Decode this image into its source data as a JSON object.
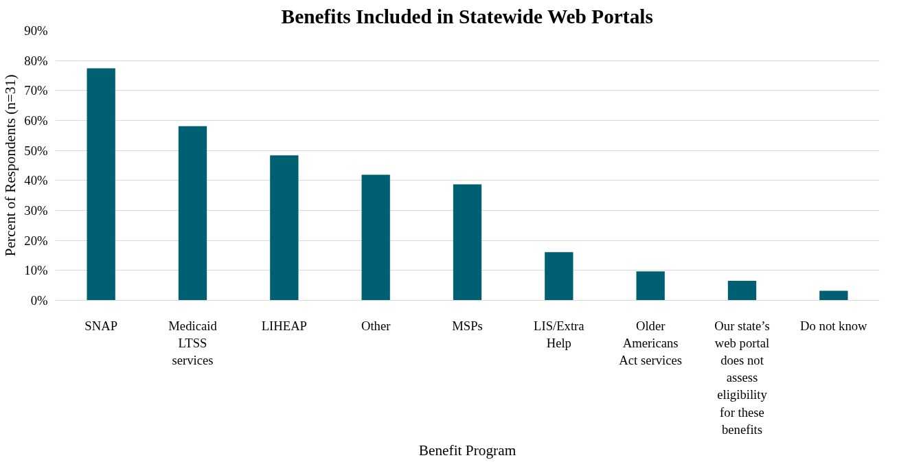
{
  "chart_data": {
    "type": "bar",
    "title": "Benefits Included in Statewide Web Portals",
    "xlabel": "Benefit Program",
    "ylabel": "Percent of Respondents (n=31)",
    "categories": [
      "SNAP",
      "Medicaid LTSS services",
      "LIHEAP",
      "Other",
      "MSPs",
      "LIS/Extra Help",
      "Older Americans Act services",
      "Our state’s web portal does not assess eligibility for these benefits",
      "Do not know"
    ],
    "values": [
      77.4,
      58.1,
      48.4,
      41.9,
      38.7,
      16.1,
      9.7,
      6.5,
      3.2
    ],
    "color": "#006072",
    "ylim": [
      0,
      90
    ],
    "yticks": [
      {
        "value": 0,
        "label": "0%"
      },
      {
        "value": 10,
        "label": "10%"
      },
      {
        "value": 20,
        "label": "20%"
      },
      {
        "value": 30,
        "label": "30%"
      },
      {
        "value": 40,
        "label": "40%"
      },
      {
        "value": 50,
        "label": "50%"
      },
      {
        "value": 60,
        "label": "60%"
      },
      {
        "value": 70,
        "label": "70%"
      },
      {
        "value": 80,
        "label": "80%"
      },
      {
        "value": 90,
        "label": "90%"
      }
    ],
    "grid": "y"
  }
}
